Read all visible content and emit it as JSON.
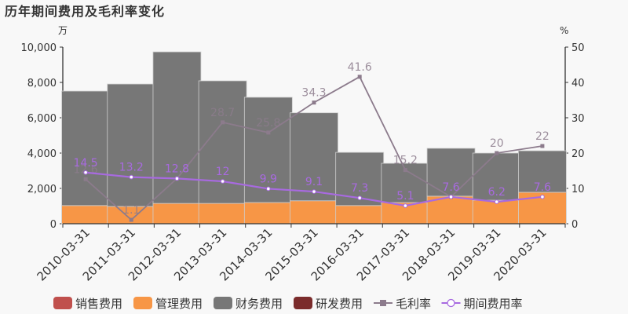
{
  "title": "历年期间费用及毛利率变化",
  "left_axis_unit": "万",
  "right_axis_unit": "%",
  "colors": {
    "sales": "#c0504d",
    "admin": "#f79646",
    "finance": "#777777",
    "rnd": "#7b2c2c",
    "gross_margin": "#8c7b8c",
    "period_rate": "#a86ae0",
    "axis": "#333333",
    "background": "#f8f8f8"
  },
  "legend": [
    {
      "key": "sales",
      "label": "销售费用",
      "type": "box"
    },
    {
      "key": "admin",
      "label": "管理费用",
      "type": "box"
    },
    {
      "key": "finance",
      "label": "财务费用",
      "type": "box"
    },
    {
      "key": "rnd",
      "label": "研发费用",
      "type": "box"
    },
    {
      "key": "gross_margin",
      "label": "毛利率",
      "type": "line-square"
    },
    {
      "key": "period_rate",
      "label": "期间费用率",
      "type": "line-circle"
    }
  ],
  "chart_data": {
    "type": "bar",
    "title": "历年期间费用及毛利率变化",
    "xlabel": "",
    "ylabel": "万",
    "y2label": "%",
    "ylim": [
      0,
      10000
    ],
    "y2lim": [
      0,
      50
    ],
    "yticks": [
      "0",
      "2,000",
      "4,000",
      "6,000",
      "8,000",
      "10,000"
    ],
    "y2ticks": [
      "0",
      "10",
      "20",
      "30",
      "40",
      "50"
    ],
    "categories": [
      "2010-03-31",
      "2011-03-31",
      "2012-03-31",
      "2013-03-31",
      "2014-03-31",
      "2015-03-31",
      "2016-03-31",
      "2017-03-31",
      "2018-03-31",
      "2019-03-31",
      "2020-03-31"
    ],
    "stacked": true,
    "legend_position": "bottom",
    "grid": false,
    "series": [
      {
        "name": "销售费用",
        "key": "sales",
        "axis": "left",
        "kind": "bar",
        "values": [
          0,
          0,
          0,
          0,
          0,
          0,
          0,
          0,
          0,
          0,
          0
        ]
      },
      {
        "name": "管理费用",
        "key": "admin",
        "axis": "left",
        "kind": "bar",
        "values": [
          1030,
          980,
          1150,
          1150,
          1200,
          1300,
          1030,
          1200,
          1560,
          1330,
          1780
        ]
      },
      {
        "name": "财务费用",
        "key": "finance",
        "axis": "left",
        "kind": "bar",
        "values": [
          6480,
          6930,
          8580,
          6940,
          5960,
          4980,
          3010,
          2220,
          2710,
          2670,
          2350
        ]
      },
      {
        "name": "研发费用",
        "key": "rnd",
        "axis": "left",
        "kind": "bar",
        "values": [
          0,
          0,
          0,
          0,
          0,
          0,
          0,
          0,
          0,
          0,
          0
        ]
      },
      {
        "name": "毛利率",
        "key": "gross_margin",
        "axis": "right",
        "kind": "line",
        "values": [
          12.6,
          1.1,
          12.8,
          28.7,
          25.8,
          34.3,
          41.6,
          15.2,
          7.6,
          20,
          22
        ],
        "labels": [
          "12.6",
          "1.1",
          "",
          "28.7",
          "25.8",
          "34.3",
          "41.6",
          "15.2",
          "",
          "20",
          "22"
        ]
      },
      {
        "name": "期间费用率",
        "key": "period_rate",
        "axis": "right",
        "kind": "line",
        "values": [
          14.5,
          13.2,
          12.8,
          12,
          9.9,
          9.1,
          7.3,
          5.1,
          7.6,
          6.2,
          7.6
        ],
        "labels": [
          "14.5",
          "13.2",
          "12.8",
          "12",
          "9.9",
          "9.1",
          "7.3",
          "5.1",
          "7.6",
          "6.2",
          "7.6"
        ]
      }
    ]
  }
}
